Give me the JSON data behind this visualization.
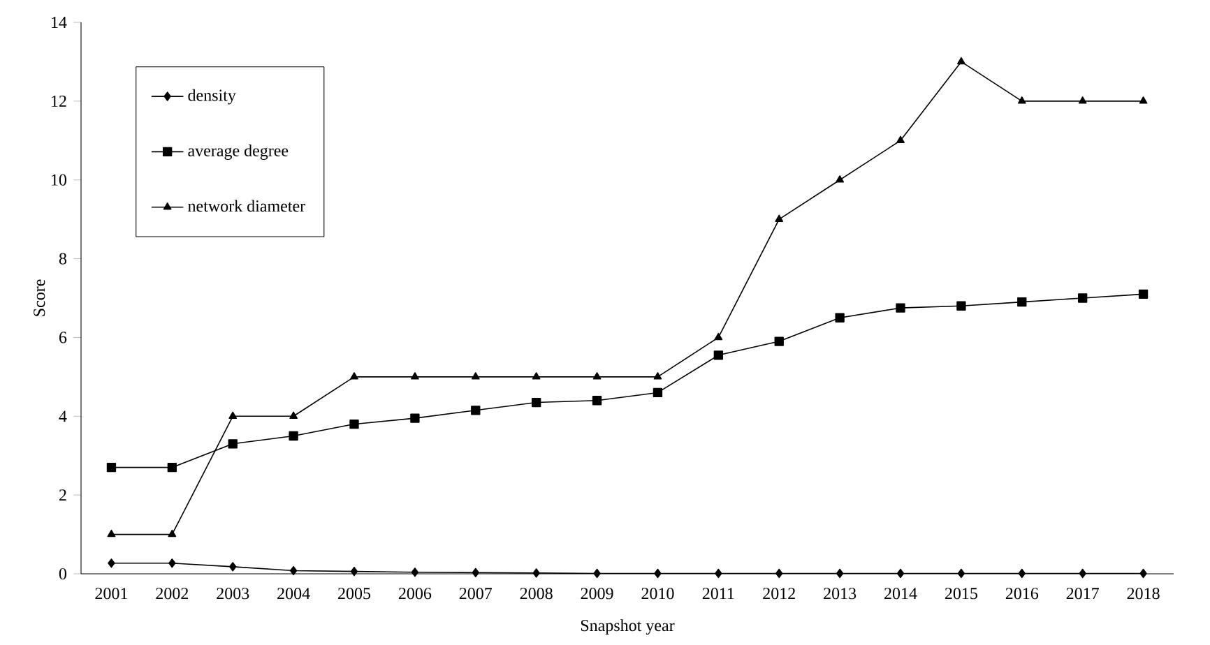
{
  "chart_data": {
    "type": "line",
    "xlabel": "Snapshot year",
    "ylabel": "Score",
    "categories": [
      "2001",
      "2002",
      "2003",
      "2004",
      "2005",
      "2006",
      "2007",
      "2008",
      "2009",
      "2010",
      "2011",
      "2012",
      "2013",
      "2014",
      "2015",
      "2016",
      "2017",
      "2018"
    ],
    "ylim": [
      0,
      14
    ],
    "yticks": [
      0,
      2,
      4,
      6,
      8,
      10,
      12,
      14
    ],
    "grid": false,
    "legend": "top left",
    "series": [
      {
        "name": "density",
        "color": "#000000",
        "marker": "diamond",
        "values": [
          0.27,
          0.27,
          0.18,
          0.08,
          0.06,
          0.04,
          0.03,
          0.02,
          0.01,
          0.01,
          0.01,
          0.01,
          0.01,
          0.01,
          0.01,
          0.01,
          0.01,
          0.01
        ]
      },
      {
        "name": "average degree",
        "color": "#000000",
        "marker": "square",
        "values": [
          2.7,
          2.7,
          3.3,
          3.5,
          3.8,
          3.95,
          4.15,
          4.35,
          4.4,
          4.6,
          5.55,
          5.9,
          6.5,
          6.75,
          6.8,
          6.9,
          7.0,
          7.1
        ]
      },
      {
        "name": "network diameter",
        "color": "#000000",
        "marker": "triangle",
        "values": [
          1,
          1,
          4,
          4,
          5,
          5,
          5,
          5,
          5,
          5,
          6,
          9,
          10,
          11,
          13,
          12,
          12,
          12
        ]
      }
    ]
  }
}
